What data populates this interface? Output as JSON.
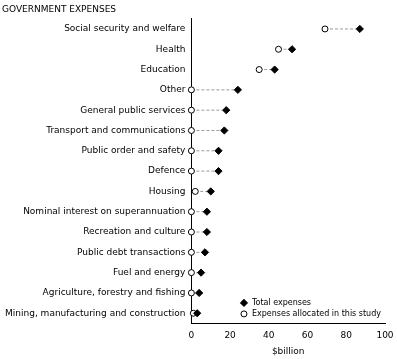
{
  "chart_data": {
    "type": "dot",
    "ylabel": "GOVERNMENT EXPENSES",
    "xlabel": "$billion",
    "orientation": "horizontal",
    "categories": [
      "Social security and welfare",
      "Health",
      "Education",
      "Other",
      "General public services",
      "Transport and communications",
      "Public order and safety",
      "Defence",
      "Housing",
      "Nominal interest on superannuation",
      "Recreation and culture",
      "Public debt transactions",
      "Fuel and energy",
      "Agriculture, forestry and fishing",
      "Mining, manufacturing and construction"
    ],
    "series": [
      {
        "name": "Total expenses",
        "color": "#000000",
        "marker": "diamond",
        "values": [
          87,
          52,
          43,
          24,
          18,
          17,
          14,
          14,
          10,
          8,
          8,
          7,
          5,
          4,
          3
        ]
      },
      {
        "name": "Expenses allocated in this study",
        "color": "#000000",
        "marker": "open circle",
        "values": [
          69,
          45,
          35,
          0,
          0,
          0,
          0,
          0,
          2,
          0,
          0,
          0,
          0,
          0,
          1
        ]
      }
    ],
    "xlim": [
      0,
      100
    ],
    "xticks": [
      0,
      20,
      40,
      60,
      80,
      100
    ],
    "grid": false,
    "legend": "lower right",
    "line_style": "dashed"
  }
}
